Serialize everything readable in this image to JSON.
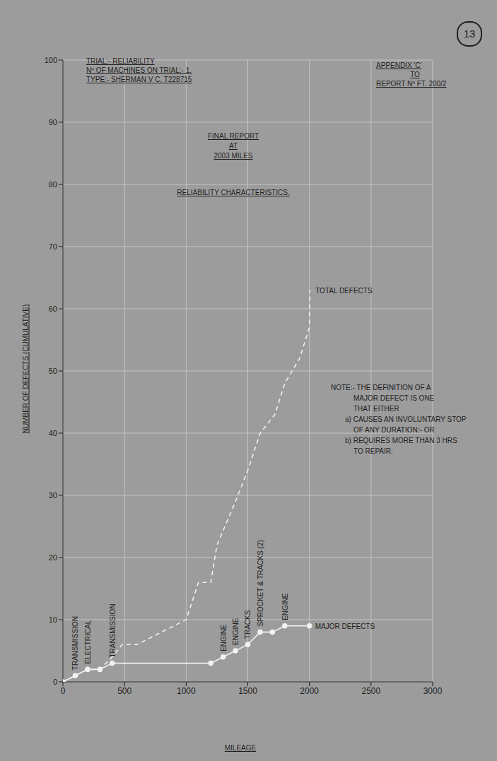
{
  "page_number": "13",
  "header_left": [
    "TRIAL:- RELIABILITY",
    "Nº OF MACHINES ON TRIAL:- 1.",
    "TYPE:- SHERMAN V C. T228715"
  ],
  "header_right": [
    "APPENDIX 'C'",
    "TO",
    "REPORT Nº FT. 200/2"
  ],
  "chart_data": {
    "type": "line",
    "title": [
      "FINAL REPORT",
      "AT",
      "2003 MILES"
    ],
    "subtitle": "RELIABILITY CHARACTERISTICS.",
    "x_label": "MILEAGE",
    "y_label": "NUMBER OF DEFECTS (CUMULATIVE)",
    "xlim": [
      0,
      3000
    ],
    "xticks": [
      0,
      500,
      1000,
      1500,
      2000,
      2500,
      3000
    ],
    "ylim": [
      0,
      100
    ],
    "yticks": [
      0,
      10,
      20,
      30,
      40,
      50,
      60,
      70,
      80,
      90,
      100
    ],
    "grid": true,
    "series": [
      {
        "name": "TOTAL DEFECTS",
        "color": "#f2f2f2",
        "line_style": "dashed",
        "marker": "none",
        "x": [
          0,
          100,
          200,
          300,
          400,
          480,
          600,
          1000,
          1100,
          1200,
          1250,
          1400,
          1500,
          1600,
          1720,
          1800,
          1920,
          2000,
          2003
        ],
        "values": [
          0,
          1,
          2,
          2,
          4,
          6,
          6,
          10,
          16,
          16,
          22,
          29,
          34,
          40,
          43,
          48,
          52,
          57,
          63
        ]
      },
      {
        "name": "MAJOR DEFECTS",
        "color": "#f2f2f2",
        "line_style": "solid",
        "marker": "circle",
        "x": [
          0,
          100,
          200,
          300,
          400,
          1200,
          1300,
          1400,
          1500,
          1600,
          1700,
          1800,
          2000
        ],
        "values": [
          0,
          1,
          2,
          2,
          3,
          3,
          4,
          5,
          6,
          8,
          8,
          9,
          9
        ]
      }
    ],
    "annotations": [
      {
        "x": 100,
        "y": 1,
        "text": "TRANSMISSION"
      },
      {
        "x": 200,
        "y": 2,
        "text": "ELECTRICAL"
      },
      {
        "x": 400,
        "y": 3,
        "text": "TRANSMISSION"
      },
      {
        "x": 1300,
        "y": 4,
        "text": "ENGINE"
      },
      {
        "x": 1400,
        "y": 5,
        "text": "ENGINE"
      },
      {
        "x": 1500,
        "y": 6,
        "text": "TRACKS"
      },
      {
        "x": 1600,
        "y": 8,
        "text": "SPROCKET & TRACKS (2)"
      },
      {
        "x": 1800,
        "y": 9,
        "text": "ENGINE"
      }
    ],
    "note": [
      "NOTE:- THE DEFINITION OF A",
      "MAJOR DEFECT IS ONE",
      "THAT EITHER",
      "a) CAUSES AN INVOLUNTARY STOP",
      "OF ANY DURATION:- OR",
      "b) REQUIRES MORE THAN 3 HRS",
      "TO REPAIR."
    ]
  }
}
